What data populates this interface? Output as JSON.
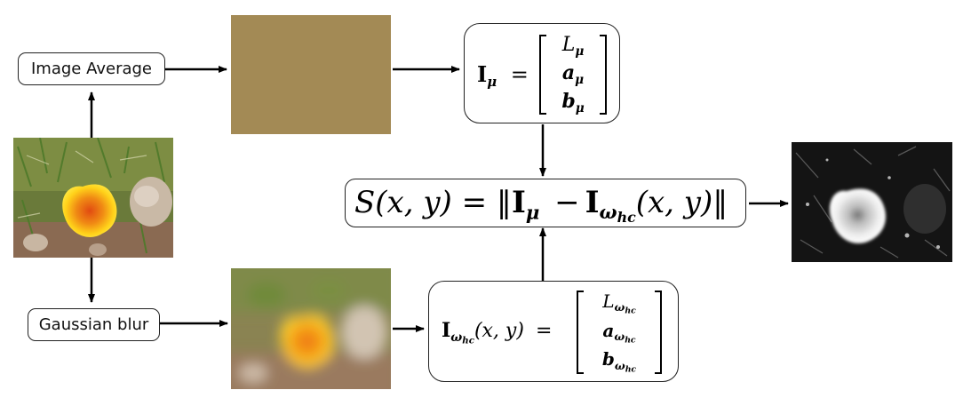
{
  "nodes": {
    "image_average": "Image Average",
    "gaussian_blur": "Gaussian blur"
  },
  "equations": {
    "i_mu_lhs": "I",
    "i_mu_sub": "μ",
    "equals": "=",
    "l_mu": "L",
    "a_mu": "a",
    "b_mu": "b",
    "mu": "μ",
    "i_whc_args": "(x, y)",
    "whc_omega": "ω",
    "whc_hc": "hc",
    "saliency": "S(x, y) = ‖",
    "minus": "−",
    "saliency_args": "(x, y)‖"
  },
  "colors": {
    "average_swatch": "#a38a55",
    "arrow": "#000000"
  }
}
